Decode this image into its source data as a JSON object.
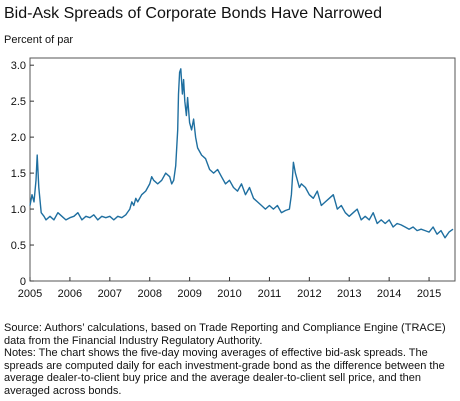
{
  "title": "Bid-Ask Spreads of Corporate Bonds Have Narrowed",
  "source": "Source: Authors’ calculations, based on Trade Reporting and Compliance Engine (TRACE) data from the Financial Industry Regulatory Authority.",
  "notes": "Notes: The chart shows the five-day moving averages of effective bid-ask spreads. The spreads are computed daily for each investment-grade bond as the difference between the average dealer-to-client buy price and the average dealer-to-client sell price, and then averaged across bonds.",
  "colors": {
    "line": "#1f6fa0",
    "axis": "#333333",
    "frame": "#555555"
  },
  "chart_data": {
    "type": "line",
    "title": "Bid-Ask Spreads of Corporate Bonds Have Narrowed",
    "ylabel": "Percent of par",
    "xlabel": "",
    "xlim": [
      2005,
      2015.65
    ],
    "ylim": [
      0,
      3.1
    ],
    "x_ticks": [
      "2005",
      "2006",
      "2007",
      "2008",
      "2009",
      "2010",
      "2011",
      "2012",
      "2013",
      "2014",
      "2015"
    ],
    "y_ticks": [
      "0",
      "0.5",
      "1.0",
      "1.5",
      "2.0",
      "2.5",
      "3.0"
    ],
    "y_tick_values": [
      0,
      0.5,
      1.0,
      1.5,
      2.0,
      2.5,
      3.0
    ],
    "grid": false,
    "series": [
      {
        "x": [
          2005.0,
          2005.05,
          2005.1,
          2005.15,
          2005.18,
          2005.22,
          2005.28,
          2005.35,
          2005.4,
          2005.5,
          2005.6,
          2005.7,
          2005.8,
          2005.9,
          2006.0,
          2006.1,
          2006.2,
          2006.3,
          2006.4,
          2006.5,
          2006.6,
          2006.7,
          2006.8,
          2006.9,
          2007.0,
          2007.1,
          2007.2,
          2007.3,
          2007.4,
          2007.5,
          2007.55,
          2007.6,
          2007.65,
          2007.7,
          2007.8,
          2007.9,
          2008.0,
          2008.05,
          2008.1,
          2008.2,
          2008.3,
          2008.4,
          2008.5,
          2008.55,
          2008.6,
          2008.65,
          2008.7,
          2008.72,
          2008.75,
          2008.78,
          2008.82,
          2008.85,
          2008.88,
          2008.92,
          2008.95,
          2009.0,
          2009.05,
          2009.1,
          2009.15,
          2009.2,
          2009.3,
          2009.4,
          2009.5,
          2009.6,
          2009.7,
          2009.8,
          2009.9,
          2010.0,
          2010.1,
          2010.2,
          2010.3,
          2010.4,
          2010.45,
          2010.5,
          2010.6,
          2010.7,
          2010.8,
          2010.9,
          2011.0,
          2011.1,
          2011.2,
          2011.3,
          2011.4,
          2011.5,
          2011.55,
          2011.6,
          2011.65,
          2011.7,
          2011.75,
          2011.8,
          2011.9,
          2012.0,
          2012.1,
          2012.2,
          2012.3,
          2012.4,
          2012.5,
          2012.6,
          2012.7,
          2012.8,
          2012.9,
          2013.0,
          2013.1,
          2013.2,
          2013.3,
          2013.4,
          2013.5,
          2013.6,
          2013.7,
          2013.8,
          2013.9,
          2014.0,
          2014.1,
          2014.2,
          2014.3,
          2014.4,
          2014.5,
          2014.6,
          2014.7,
          2014.8,
          2014.9,
          2015.0,
          2015.1,
          2015.2,
          2015.3,
          2015.4,
          2015.5,
          2015.6
        ],
        "values": [
          1.05,
          1.2,
          1.1,
          1.4,
          1.75,
          1.3,
          0.95,
          0.9,
          0.85,
          0.9,
          0.85,
          0.95,
          0.9,
          0.85,
          0.88,
          0.9,
          0.95,
          0.85,
          0.9,
          0.88,
          0.92,
          0.85,
          0.9,
          0.88,
          0.9,
          0.85,
          0.9,
          0.88,
          0.92,
          1.0,
          1.1,
          1.05,
          1.15,
          1.1,
          1.2,
          1.25,
          1.35,
          1.45,
          1.4,
          1.35,
          1.4,
          1.5,
          1.45,
          1.35,
          1.4,
          1.6,
          2.1,
          2.6,
          2.9,
          2.95,
          2.6,
          2.8,
          2.5,
          2.3,
          2.55,
          2.2,
          2.1,
          2.25,
          2.0,
          1.85,
          1.75,
          1.7,
          1.55,
          1.5,
          1.55,
          1.45,
          1.35,
          1.4,
          1.3,
          1.25,
          1.35,
          1.2,
          1.25,
          1.3,
          1.15,
          1.1,
          1.05,
          1.0,
          1.05,
          1.0,
          1.05,
          0.95,
          0.98,
          1.0,
          1.2,
          1.65,
          1.5,
          1.4,
          1.3,
          1.35,
          1.3,
          1.2,
          1.15,
          1.25,
          1.05,
          1.1,
          1.15,
          1.2,
          1.0,
          1.05,
          0.95,
          0.9,
          0.95,
          1.0,
          0.85,
          0.9,
          0.85,
          0.95,
          0.8,
          0.85,
          0.8,
          0.85,
          0.75,
          0.8,
          0.78,
          0.75,
          0.72,
          0.75,
          0.7,
          0.72,
          0.7,
          0.68,
          0.75,
          0.65,
          0.7,
          0.6,
          0.68,
          0.72
        ]
      }
    ]
  }
}
